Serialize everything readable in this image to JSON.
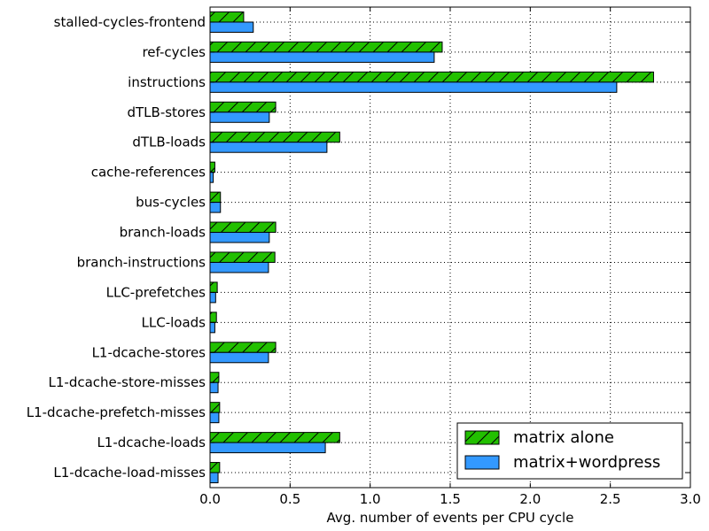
{
  "chart_data": {
    "type": "bar",
    "orientation": "horizontal",
    "categories": [
      "stalled-cycles-frontend",
      "ref-cycles",
      "instructions",
      "dTLB-stores",
      "dTLB-loads",
      "cache-references",
      "bus-cycles",
      "branch-loads",
      "branch-instructions",
      "LLC-prefetches",
      "LLC-loads",
      "L1-dcache-stores",
      "L1-dcache-store-misses",
      "L1-dcache-prefetch-misses",
      "L1-dcache-loads",
      "L1-dcache-load-misses"
    ],
    "series": [
      {
        "name": "matrix alone",
        "color": "#22c000",
        "hatch": "diagonal",
        "values": [
          0.21,
          1.45,
          2.77,
          0.41,
          0.81,
          0.03,
          0.065,
          0.41,
          0.405,
          0.045,
          0.04,
          0.41,
          0.055,
          0.06,
          0.81,
          0.06
        ]
      },
      {
        "name": "matrix+wordpress",
        "color": "#3399ff",
        "hatch": "none",
        "values": [
          0.27,
          1.4,
          2.54,
          0.37,
          0.73,
          0.02,
          0.065,
          0.37,
          0.365,
          0.035,
          0.03,
          0.365,
          0.05,
          0.055,
          0.72,
          0.05
        ]
      }
    ],
    "xlabel": "Avg. number of events per CPU cycle",
    "ylabel": "",
    "title": "",
    "xlim": [
      0,
      3.0
    ],
    "xticks": [
      0,
      0.5,
      1.0,
      1.5,
      2.0,
      2.5,
      3.0
    ],
    "xtick_labels": [
      "0.0",
      "0.5",
      "1.0",
      "1.5",
      "2.0",
      "2.5",
      "3.0"
    ],
    "grid": true,
    "legend_position": "bottom-right"
  }
}
